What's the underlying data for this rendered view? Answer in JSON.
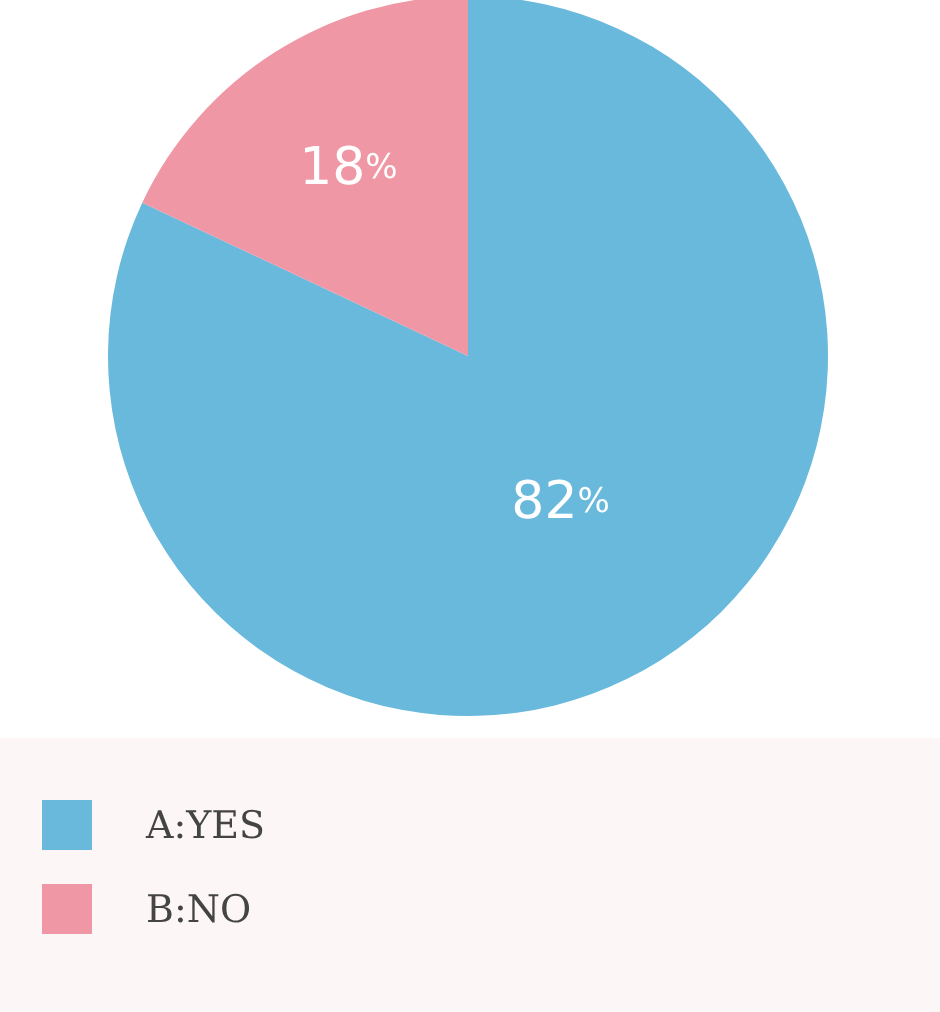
{
  "chart_data": {
    "type": "pie",
    "categories": [
      "A:YES",
      "B:NO"
    ],
    "values": [
      82,
      18
    ],
    "colors": [
      "#68b9dc",
      "#ef97a4"
    ],
    "value_labels": [
      "82%",
      "18%"
    ],
    "legend": "bottom"
  }
}
